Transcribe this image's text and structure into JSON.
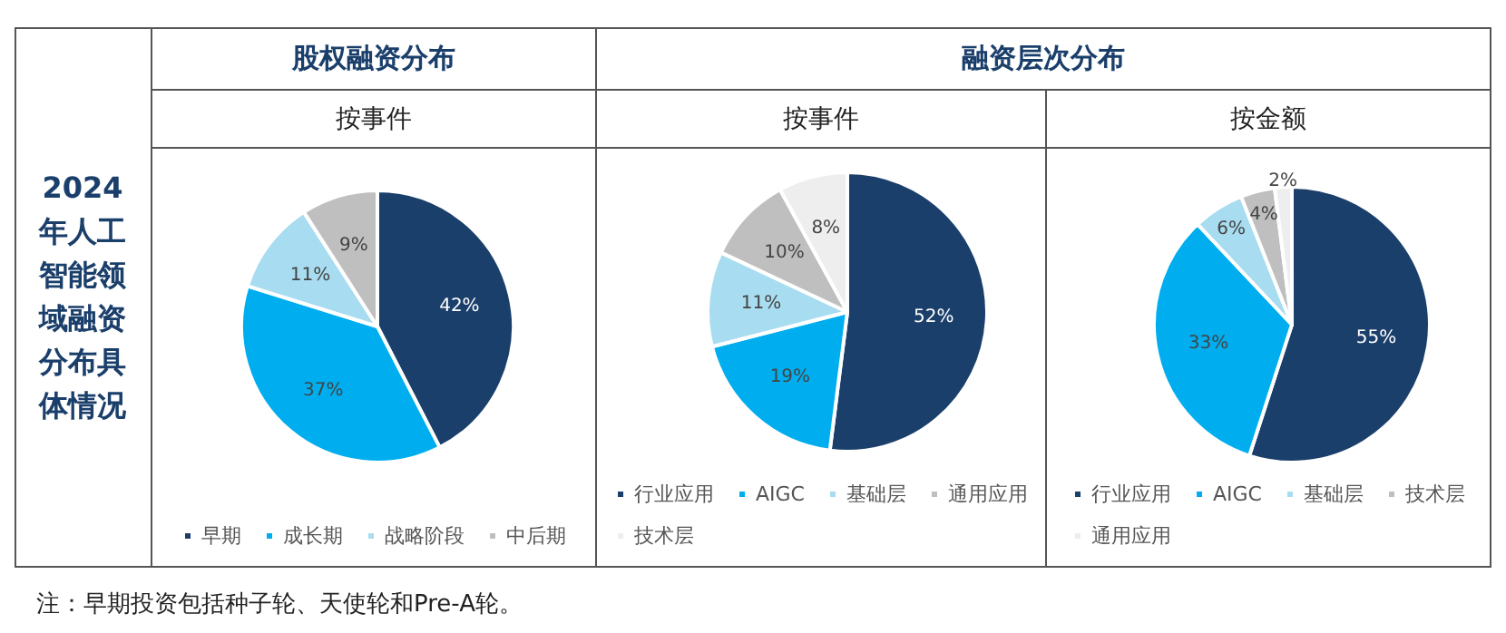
{
  "chart_data": [
    {
      "type": "pie",
      "title": "股权融资分布",
      "subtitle": "按事件",
      "categories": [
        "早期",
        "成长期",
        "战略阶段",
        "中后期"
      ],
      "values": [
        42,
        37,
        11,
        9
      ],
      "colors": [
        "#1b3f6b",
        "#00aeef",
        "#a8dcf0",
        "#bfbfbf"
      ],
      "value_labels": [
        "42%",
        "37%",
        "11%",
        "9%"
      ],
      "legend": "bottom",
      "annotations": [
        "2024年人工智能领域融资分布具体情况",
        "注：早期投资包括种子轮、天使轮和Pre-A轮。"
      ]
    },
    {
      "type": "pie",
      "title": "融资层次分布",
      "subtitle": "按事件",
      "categories": [
        "行业应用",
        "AIGC",
        "基础层",
        "通用应用",
        "技术层"
      ],
      "values": [
        52,
        19,
        11,
        10,
        8
      ],
      "colors": [
        "#1b3f6b",
        "#00aeef",
        "#a8dcf0",
        "#bfbfbf",
        "#eeeeee"
      ],
      "value_labels": [
        "52%",
        "19%",
        "11%",
        "10%",
        "8%"
      ],
      "legend": "bottom"
    },
    {
      "type": "pie",
      "subtitle": "按金额",
      "categories": [
        "行业应用",
        "AIGC",
        "基础层",
        "技术层",
        "通用应用"
      ],
      "values": [
        55,
        33,
        6,
        4,
        2
      ],
      "colors": [
        "#1b3f6b",
        "#00aeef",
        "#a8dcf0",
        "#bfbfbf",
        "#eeeeee"
      ],
      "value_labels": [
        "55%",
        "33%",
        "6%",
        "4%",
        "2%"
      ],
      "legend": "bottom"
    }
  ]
}
